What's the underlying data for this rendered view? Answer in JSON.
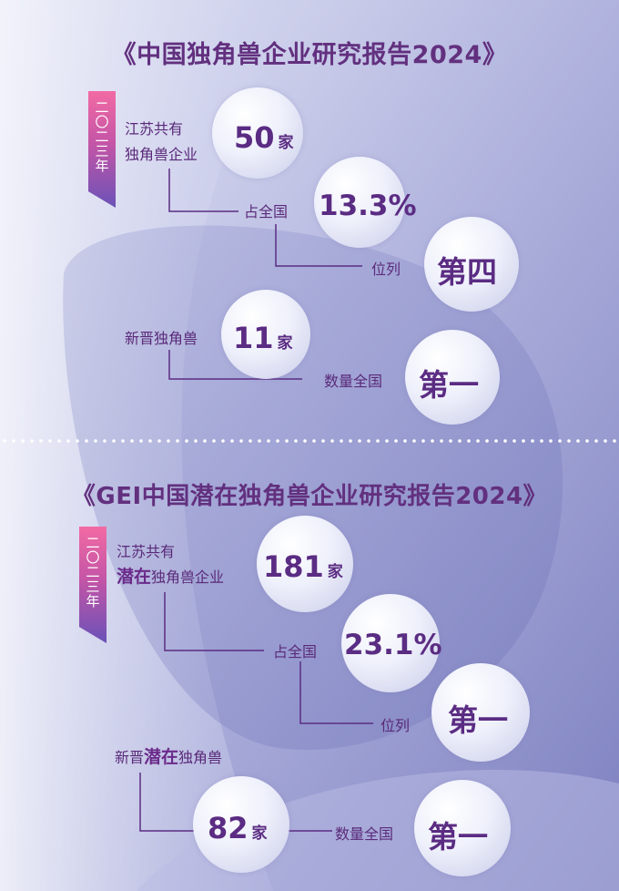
{
  "section1": {
    "title": "《中国独角兽企业研究报告2024》",
    "year": "二〇二三年",
    "count_label_line1": "江苏共有",
    "count_label_line2": "独角兽企业",
    "count_value": "50",
    "count_unit": "家",
    "share_label": "占全国",
    "share_value": "13.3%",
    "rank_label": "位列",
    "rank_value": "第四",
    "new_label": "新晋独角兽",
    "new_value": "11",
    "new_unit": "家",
    "new_rank_label": "数量全国",
    "new_rank_value": "第一"
  },
  "section2": {
    "title": "《GEI中国潜在独角兽企业研究报告2024》",
    "year": "二〇二三年",
    "count_label_line1": "江苏共有",
    "count_label_bold": "潜在",
    "count_label_rest": "独角兽企业",
    "count_value": "181",
    "count_unit": "家",
    "share_label": "占全国",
    "share_value": "23.1%",
    "rank_label": "位列",
    "rank_value": "第一",
    "new_label_pre": "新晋",
    "new_label_bold": "潜在",
    "new_label_post": "独角兽",
    "new_value": "82",
    "new_unit": "家",
    "new_rank_label": "数量全国",
    "new_rank_value": "第一"
  },
  "colors": {
    "accent": "#5b2c83",
    "tag_top": "#f26aa4",
    "tag_bottom": "#6a52b8",
    "background": "#9ea3d4"
  }
}
